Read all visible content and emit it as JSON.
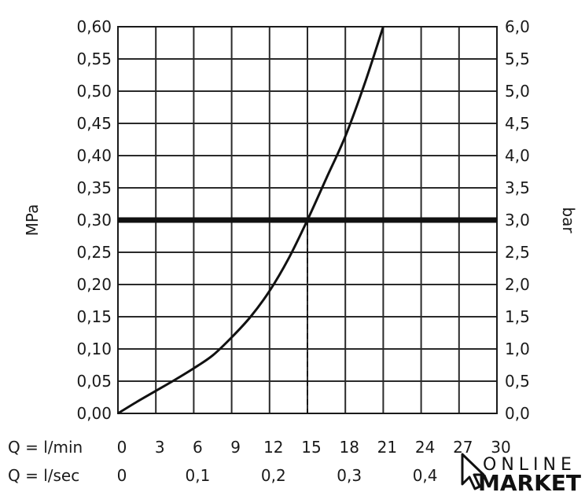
{
  "chart_data": {
    "type": "line",
    "xlim": [
      0,
      30
    ],
    "ylim": [
      0,
      0.6
    ],
    "y2lim": [
      0,
      6
    ],
    "grid": true,
    "x_ticks": [
      "0",
      "3",
      "6",
      "9",
      "12",
      "15",
      "18",
      "21",
      "24",
      "27",
      "30"
    ],
    "x_tick_values": [
      0,
      3,
      6,
      9,
      12,
      15,
      18,
      21,
      24,
      27,
      30
    ],
    "x2_label": "Q = l/min",
    "x3_label": "Q = l/sec",
    "x3_ticks": [
      "0",
      "0,1",
      "0,2",
      "0,3",
      "0,4"
    ],
    "x3_tick_values": [
      0,
      6,
      12,
      18,
      24
    ],
    "y_ticks": [
      "0,00",
      "0,05",
      "0,10",
      "0,15",
      "0,20",
      "0,25",
      "0,30",
      "0,35",
      "0,40",
      "0,45",
      "0,50",
      "0,55",
      "0,60"
    ],
    "y_tick_values": [
      0,
      0.05,
      0.1,
      0.15,
      0.2,
      0.25,
      0.3,
      0.35,
      0.4,
      0.45,
      0.5,
      0.55,
      0.6
    ],
    "y2_ticks": [
      "0,0",
      "0,5",
      "1,0",
      "1,5",
      "2,0",
      "2,5",
      "3,0",
      "3,5",
      "4,0",
      "4,5",
      "5,0",
      "5,5",
      "6,0"
    ],
    "ylabel": "MPa",
    "y2label": "bar",
    "series": [
      {
        "x": [
          0,
          1.5,
          3,
          4.5,
          6,
          7.5,
          9,
          10.5,
          12,
          13.5,
          15,
          16.5,
          18,
          19.5,
          21
        ],
        "y": [
          0,
          0.018,
          0.035,
          0.052,
          0.07,
          0.09,
          0.118,
          0.15,
          0.19,
          0.24,
          0.3,
          0.365,
          0.43,
          0.51,
          0.6
        ]
      }
    ],
    "reference_line": {
      "y": 0.3
    },
    "reference_drop": {
      "x": 15,
      "y": 0.3
    }
  },
  "logo": {
    "top": "ONLINE",
    "bottom": "MARKET"
  }
}
